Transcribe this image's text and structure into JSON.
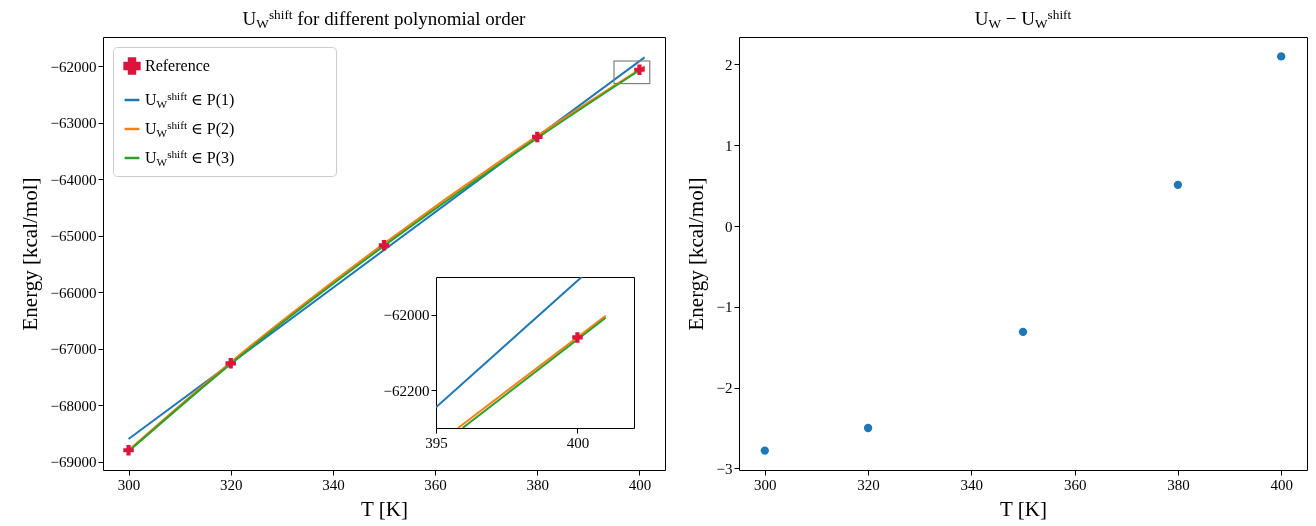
{
  "chart_data": [
    {
      "type": "line",
      "title": "U$_{W}$$^{shift}$ for different polynomial order",
      "xlabel": "T [K]",
      "ylabel": "Energy [kcal/mol]",
      "xlim": [
        295,
        405
      ],
      "ylim": [
        -69150,
        -61480
      ],
      "xticks": [
        300,
        320,
        340,
        360,
        380,
        400
      ],
      "yticks": [
        -69000,
        -68000,
        -67000,
        -66000,
        -65000,
        -64000,
        -63000,
        -62000
      ],
      "grid": false,
      "legend": "top left",
      "series": [
        {
          "name": "Reference",
          "type": "scatter",
          "marker": "cross",
          "color": "#dc143c",
          "x": [
            300,
            320,
            350,
            380,
            400
          ],
          "values": [
            -68800,
            -67260,
            -65170,
            -63250,
            -62060
          ]
        },
        {
          "name": "U$_{W}$$^{shift}$ ∈ P(1)",
          "color": "#1f77b4",
          "x": [
            300,
            401
          ],
          "values": [
            -68600,
            -61840
          ]
        },
        {
          "name": "U$_{W}$$^{shift}$ ∈ P(2)",
          "color": "#ff7f0e",
          "x": [
            300,
            320,
            350,
            380,
            401
          ],
          "values": [
            -68800,
            -67240,
            -65140,
            -63230,
            -62000
          ]
        },
        {
          "name": "U$_{W}$$^{shift}$ ∈ P(3)",
          "color": "#2ca02c",
          "x": [
            300,
            320,
            350,
            380,
            401
          ],
          "values": [
            -68820,
            -67270,
            -65180,
            -63270,
            -62010
          ]
        }
      ]
    },
    {
      "type": "line",
      "xlim": [
        395,
        402
      ],
      "ylim": [
        -62300,
        -61900
      ],
      "xticks": [
        395,
        400
      ],
      "yticks": [
        -62200,
        -62000
      ],
      "grid": false,
      "series": [
        {
          "type": "scatter",
          "marker": "cross",
          "color": "#dc143c",
          "x": [
            400
          ],
          "values": [
            -62060
          ]
        },
        {
          "color": "#1f77b4",
          "x": [
            395,
            400.15
          ],
          "values": [
            -62245,
            -61900
          ]
        },
        {
          "color": "#ff7f0e",
          "x": [
            395.78,
            401
          ],
          "values": [
            -62300,
            -62003
          ]
        },
        {
          "color": "#2ca02c",
          "x": [
            395.94,
            401
          ],
          "values": [
            -62300,
            -62008
          ]
        }
      ]
    },
    {
      "type": "scatter",
      "title": "U$_{W}$ − U$_{W}$$^{shift}$",
      "xlabel": "T [K]",
      "ylabel": "Energy [kcal/mol]",
      "xlim": [
        295,
        405
      ],
      "ylim": [
        -3.02,
        2.34
      ],
      "xticks": [
        300,
        320,
        340,
        360,
        380,
        400
      ],
      "yticks": [
        -3,
        -2,
        -1,
        0,
        1,
        2
      ],
      "grid": false,
      "marker": "circle",
      "series": [
        {
          "color": "#1f77b4",
          "x": [
            300,
            320,
            350,
            380,
            400
          ],
          "values": [
            -2.78,
            -2.5,
            -1.31,
            0.51,
            2.1
          ]
        }
      ]
    }
  ]
}
